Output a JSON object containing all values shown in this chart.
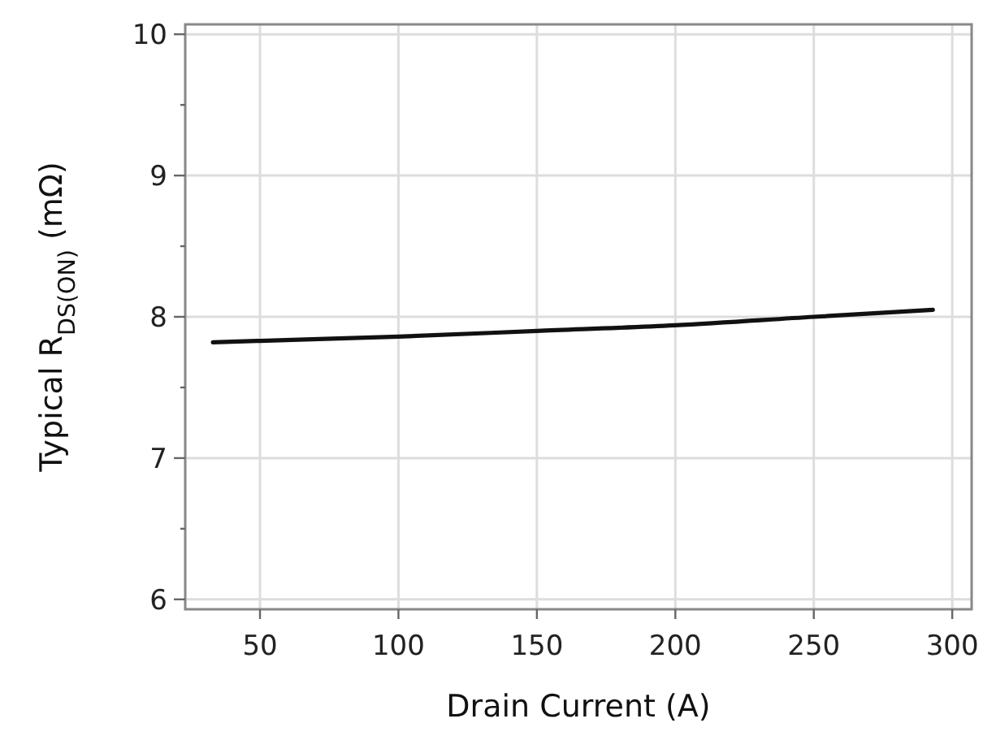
{
  "chart_data": {
    "type": "line",
    "xlabel": "Drain Current (A)",
    "ylabel": "Typical R$_{DS(ON)}$ (mΩ)",
    "x": [
      33,
      50,
      100,
      150,
      200,
      250,
      293
    ],
    "series": [
      {
        "color": "#111111",
        "values": [
          7.82,
          7.83,
          7.86,
          7.9,
          7.94,
          8.0,
          8.05
        ]
      }
    ],
    "xlim": [
      23,
      307
    ],
    "xticks": [
      50,
      100,
      150,
      200,
      250,
      300
    ],
    "ylim": [
      5.93,
      10.07
    ],
    "yticks": [
      6,
      {
        "value": 6.5,
        "label": null
      },
      7,
      {
        "value": 7.5,
        "label": null
      },
      8,
      {
        "value": 8.5,
        "label": null
      },
      9,
      {
        "value": 9.5,
        "label": null
      },
      10
    ],
    "grid": true,
    "marker": "none",
    "line_style": "solid"
  }
}
